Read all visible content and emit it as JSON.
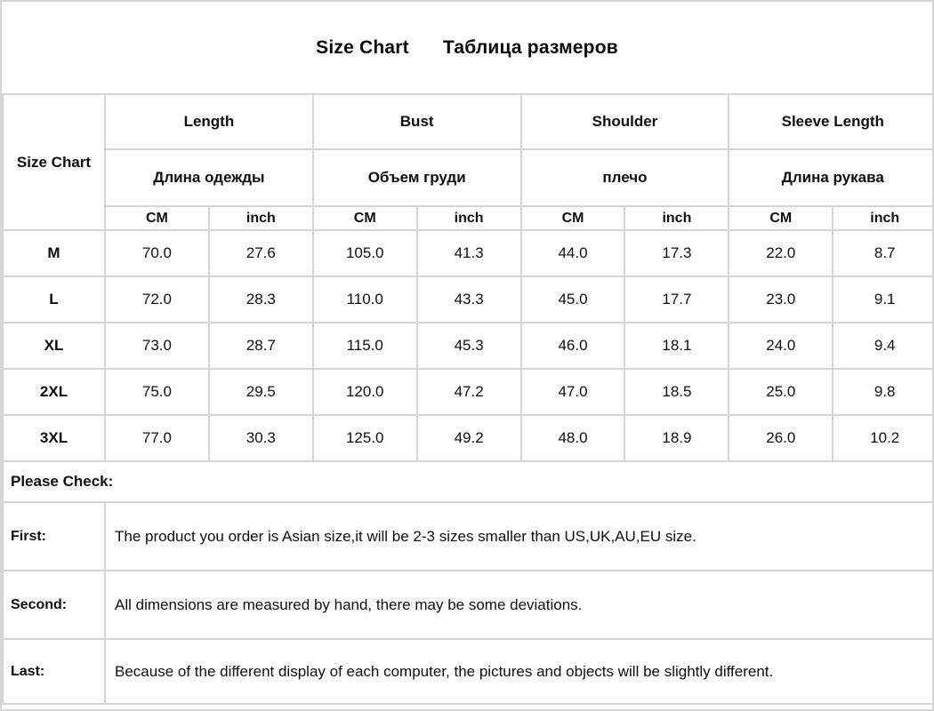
{
  "title": {
    "en": "Size Chart",
    "ru": "Таблица размеров"
  },
  "table": {
    "corner_label": "Size Chart",
    "columns": [
      {
        "en": "Length",
        "ru": "Длина одежды"
      },
      {
        "en": "Bust",
        "ru": "Объем груди"
      },
      {
        "en": "Shoulder",
        "ru": "плечо"
      },
      {
        "en": "Sleeve Length",
        "ru": "Длина рукава"
      }
    ],
    "unit_cm": "CM",
    "unit_inch": "inch",
    "rows": [
      {
        "size": "M",
        "values": [
          "70.0",
          "27.6",
          "105.0",
          "41.3",
          "44.0",
          "17.3",
          "22.0",
          "8.7"
        ]
      },
      {
        "size": "L",
        "values": [
          "72.0",
          "28.3",
          "110.0",
          "43.3",
          "45.0",
          "17.7",
          "23.0",
          "9.1"
        ]
      },
      {
        "size": "XL",
        "values": [
          "73.0",
          "28.7",
          "115.0",
          "45.3",
          "46.0",
          "18.1",
          "24.0",
          "9.4"
        ]
      },
      {
        "size": "2XL",
        "values": [
          "75.0",
          "29.5",
          "120.0",
          "47.2",
          "47.0",
          "18.5",
          "25.0",
          "9.8"
        ]
      },
      {
        "size": "3XL",
        "values": [
          "77.0",
          "30.3",
          "125.0",
          "49.2",
          "48.0",
          "18.9",
          "26.0",
          "10.2"
        ]
      }
    ]
  },
  "notes": {
    "header": "Please Check:",
    "items": [
      {
        "label": "First:",
        "text": "The product you order is Asian size,it will be 2-3 sizes smaller than US,UK,AU,EU size."
      },
      {
        "label": "Second:",
        "text": "All dimensions are measured by hand, there may be some deviations."
      },
      {
        "label": "Last:",
        "text": "Because of the different display of each computer, the pictures and objects will be slightly different."
      }
    ]
  },
  "colors": {
    "border": "#d6d6d6",
    "text": "#0f0f0f",
    "background": "#ffffff"
  }
}
